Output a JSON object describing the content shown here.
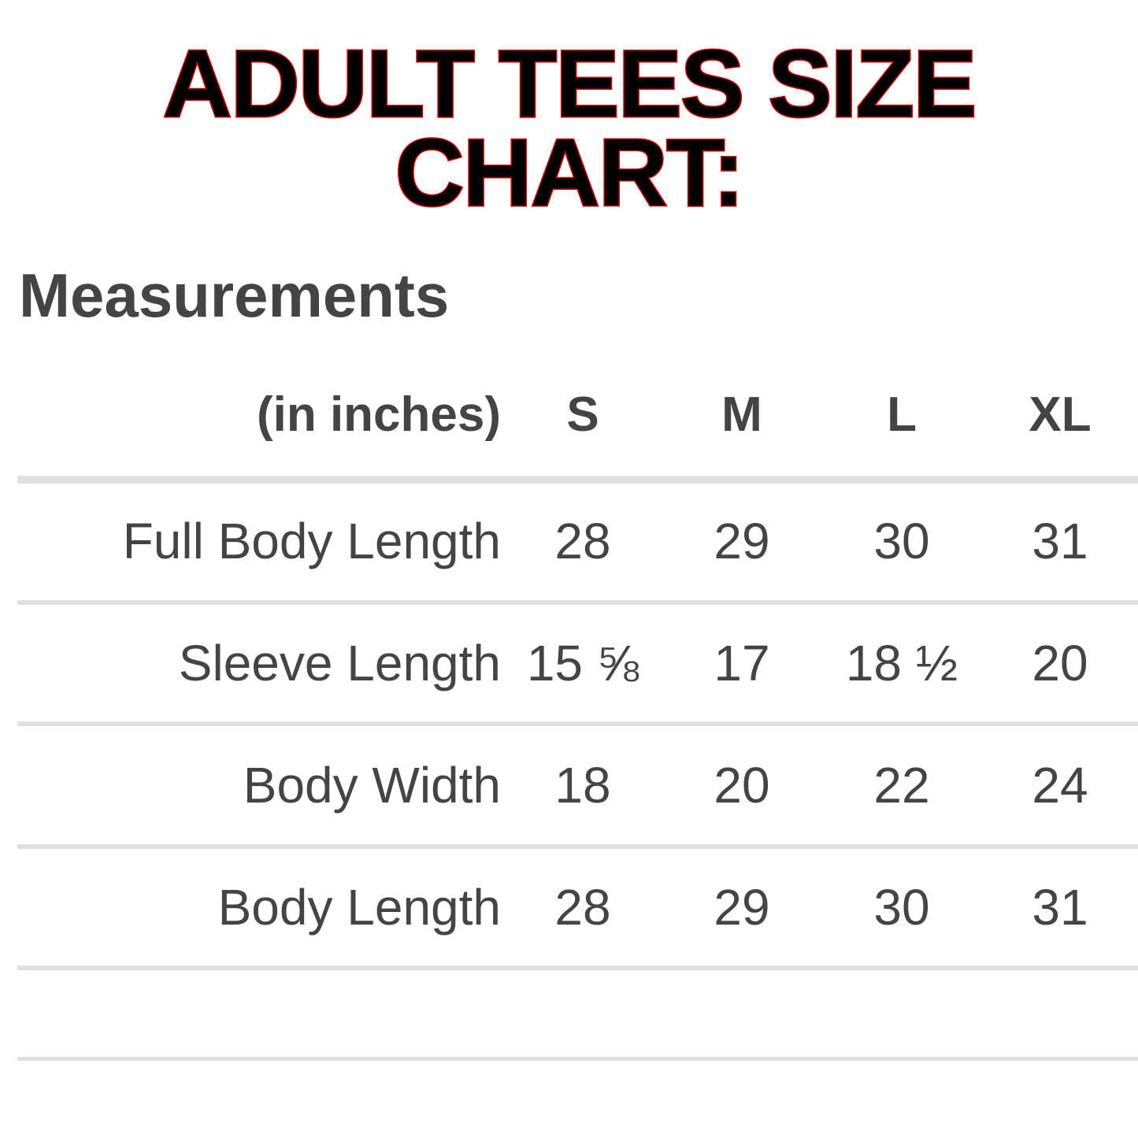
{
  "title": {
    "line1": "ADULT TEES SIZE",
    "line2": "CHART:"
  },
  "section_heading": "Measurements",
  "table": {
    "unit_header": "(in inches)",
    "sizes": [
      "S",
      "M",
      "L",
      "XL"
    ],
    "rows": [
      {
        "label": "Full Body Length",
        "values": [
          "28",
          "29",
          "30",
          "31"
        ]
      },
      {
        "label": "Sleeve Length",
        "values": [
          "15 ⅝",
          "17",
          "18 ½",
          "20"
        ]
      },
      {
        "label": "Body Width",
        "values": [
          "18",
          "20",
          "22",
          "24"
        ]
      },
      {
        "label": "Body Length",
        "values": [
          "28",
          "29",
          "30",
          "31"
        ]
      }
    ]
  },
  "colors": {
    "title_fill": "#000000",
    "title_outline": "#d30000",
    "text": "#444444",
    "divider": "#e0e0e4"
  }
}
